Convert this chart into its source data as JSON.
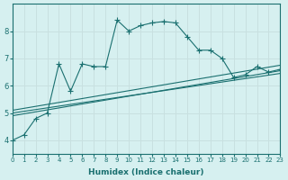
{
  "xlabel": "Humidex (Indice chaleur)",
  "bg_color": "#d6f0f0",
  "grid_color": "#c8e0e0",
  "line_color": "#1a7070",
  "xlim": [
    0,
    23
  ],
  "ylim": [
    3.5,
    9.0
  ],
  "yticks": [
    4,
    5,
    6,
    7,
    8
  ],
  "xticks": [
    0,
    1,
    2,
    3,
    4,
    5,
    6,
    7,
    8,
    9,
    10,
    11,
    12,
    13,
    14,
    15,
    16,
    17,
    18,
    19,
    20,
    21,
    22,
    23
  ],
  "series1_x": [
    0,
    1,
    2,
    3,
    4,
    5,
    6,
    7,
    8,
    9,
    10,
    11,
    12,
    13,
    14,
    15,
    16,
    17,
    18,
    19,
    20,
    21,
    22,
    23
  ],
  "series1_y": [
    4.0,
    4.2,
    4.8,
    5.0,
    6.8,
    5.8,
    6.8,
    6.7,
    6.7,
    8.4,
    8.0,
    8.2,
    8.3,
    8.35,
    8.3,
    7.8,
    7.3,
    7.3,
    7.0,
    6.3,
    6.4,
    6.7,
    6.5,
    6.6
  ],
  "series2_x": [
    0,
    23
  ],
  "series2_y": [
    4.9,
    6.55
  ],
  "series3_x": [
    0,
    23
  ],
  "series3_y": [
    5.1,
    6.75
  ],
  "series4_x": [
    0,
    23
  ],
  "series4_y": [
    5.0,
    6.45
  ]
}
